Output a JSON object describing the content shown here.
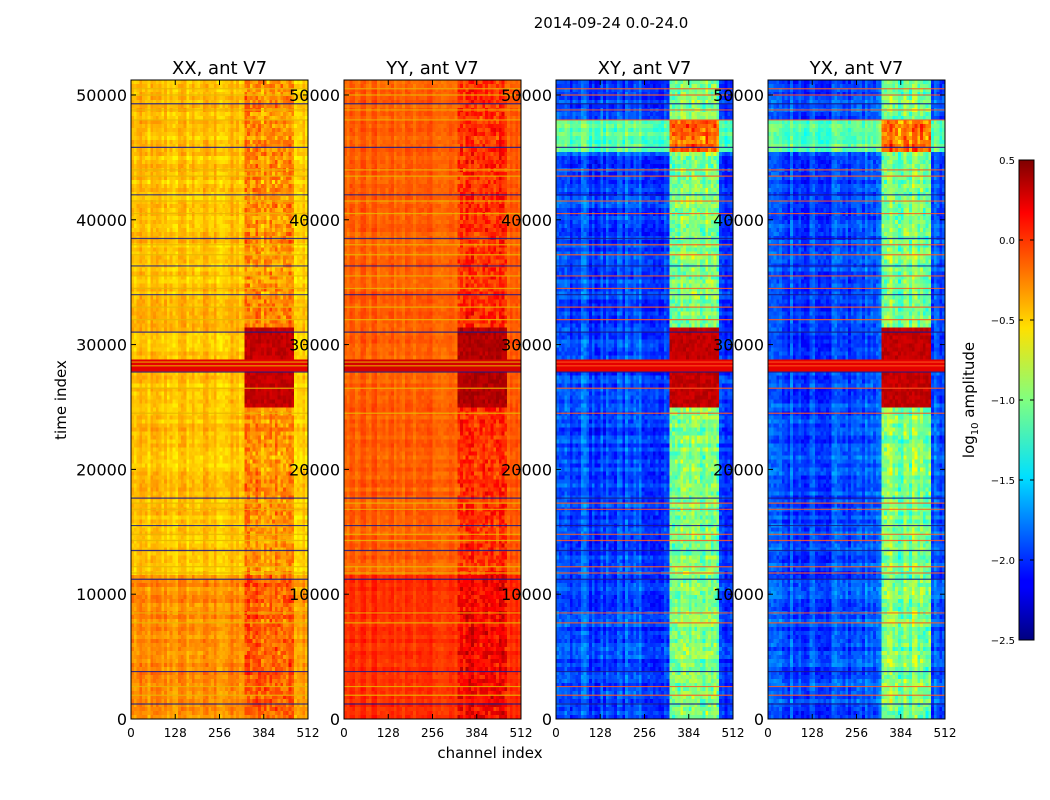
{
  "chart_data": {
    "type": "heatmap",
    "title": "2014-09-24 0.0-24.0",
    "xlabel": "channel index",
    "ylabel": "time index",
    "xlim": [
      0,
      512
    ],
    "ylim": [
      0,
      51200
    ],
    "x_ticks": [
      0,
      128,
      256,
      384,
      512
    ],
    "y_ticks": [
      0,
      10000,
      20000,
      30000,
      40000,
      50000
    ],
    "colormap": "jet",
    "colorbar": {
      "label": "log10 amplitude",
      "label_base": "log",
      "label_sub": "10",
      "label_rest": " amplitude",
      "range": [
        -2.5,
        0.5
      ],
      "ticks": [
        0.5,
        0.0,
        -0.5,
        -1.0,
        -1.5,
        -2.0,
        -2.5
      ],
      "tick_labels": [
        "0.5",
        "0.0",
        "−0.5",
        "−1.0",
        "−1.5",
        "−2.0",
        "−2.5"
      ]
    },
    "panels": [
      {
        "title": "XX, ant V7",
        "polarization": "XX",
        "antenna": "V7",
        "base_level": -0.45,
        "hot_level": 0.3,
        "noise": 0.12
      },
      {
        "title": "YY, ant V7",
        "polarization": "YY",
        "antenna": "V7",
        "base_level": -0.15,
        "hot_level": 0.35,
        "noise": 0.08
      },
      {
        "title": "XY, ant V7",
        "polarization": "XY",
        "antenna": "V7",
        "base_level": -1.9,
        "hot_level": 0.3,
        "noise": 0.2
      },
      {
        "title": "YX, ant V7",
        "polarization": "YX",
        "antenna": "V7",
        "base_level": -1.9,
        "hot_level": 0.3,
        "noise": 0.2
      }
    ],
    "rfi_channel_band": [
      330,
      470
    ],
    "bright_time_band": [
      25000,
      31500
    ],
    "flagged_rows": [
      1200,
      1900,
      2600,
      3800,
      7700,
      8500,
      11200,
      11700,
      12200,
      13500,
      14300,
      14800,
      15500,
      16800,
      17300,
      17700,
      24500,
      26500,
      27800,
      28300,
      28600,
      31000,
      32000,
      33000,
      34000,
      34500,
      35500,
      36300,
      37200,
      38000,
      38500,
      40500,
      41500,
      42000,
      43500,
      44000,
      45800,
      48000,
      48800,
      49300,
      50000,
      50500
    ]
  }
}
